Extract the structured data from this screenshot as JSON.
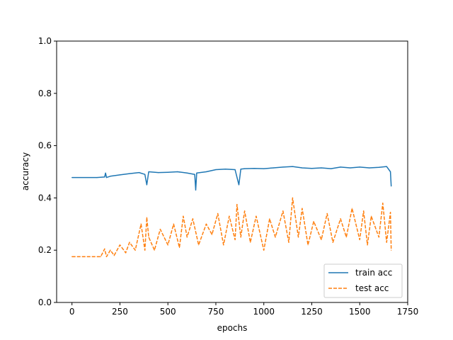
{
  "chart_data": {
    "type": "line",
    "xlabel": "epochs",
    "ylabel": "accuracy",
    "xlim": [
      -80,
      1750
    ],
    "ylim": [
      0,
      1.0
    ],
    "xticks": [
      0,
      250,
      500,
      750,
      1000,
      1250,
      1500,
      1750
    ],
    "yticks": [
      0.0,
      0.2,
      0.4,
      0.6,
      0.8,
      1.0
    ],
    "xtick_labels": [
      "0",
      "250",
      "500",
      "750",
      "1000",
      "1250",
      "1500",
      "1750"
    ],
    "ytick_labels": [
      "0.0",
      "0.2",
      "0.4",
      "0.6",
      "0.8",
      "1.0"
    ],
    "grid": false,
    "legend_position": "lower-right",
    "series": [
      {
        "name": "train acc",
        "style": "solid",
        "color": "#1f77b4",
        "x": [
          0,
          130,
          170,
          175,
          180,
          200,
          250,
          300,
          350,
          380,
          390,
          400,
          450,
          500,
          550,
          600,
          640,
          645,
          650,
          700,
          750,
          800,
          850,
          870,
          880,
          900,
          950,
          1000,
          1050,
          1100,
          1150,
          1200,
          1250,
          1300,
          1350,
          1400,
          1450,
          1500,
          1550,
          1600,
          1640,
          1660,
          1664
        ],
        "values": [
          0.478,
          0.478,
          0.48,
          0.495,
          0.478,
          0.483,
          0.488,
          0.493,
          0.497,
          0.49,
          0.45,
          0.5,
          0.497,
          0.498,
          0.5,
          0.495,
          0.49,
          0.43,
          0.495,
          0.5,
          0.508,
          0.51,
          0.508,
          0.45,
          0.51,
          0.512,
          0.513,
          0.512,
          0.515,
          0.518,
          0.52,
          0.515,
          0.513,
          0.515,
          0.512,
          0.518,
          0.515,
          0.518,
          0.515,
          0.517,
          0.52,
          0.5,
          0.445
        ]
      },
      {
        "name": "test acc",
        "style": "dashed",
        "color": "#ff7f0e",
        "x": [
          0,
          150,
          170,
          180,
          200,
          220,
          250,
          280,
          300,
          330,
          360,
          380,
          390,
          400,
          430,
          460,
          500,
          530,
          560,
          580,
          600,
          630,
          660,
          700,
          730,
          760,
          790,
          820,
          850,
          860,
          880,
          900,
          930,
          960,
          1000,
          1030,
          1060,
          1100,
          1130,
          1150,
          1180,
          1200,
          1230,
          1260,
          1300,
          1330,
          1360,
          1400,
          1430,
          1460,
          1500,
          1520,
          1540,
          1560,
          1600,
          1620,
          1640,
          1660,
          1664
        ],
        "values": [
          0.175,
          0.175,
          0.205,
          0.175,
          0.2,
          0.18,
          0.22,
          0.19,
          0.23,
          0.2,
          0.3,
          0.2,
          0.325,
          0.25,
          0.2,
          0.28,
          0.22,
          0.3,
          0.21,
          0.33,
          0.25,
          0.32,
          0.22,
          0.3,
          0.26,
          0.34,
          0.22,
          0.33,
          0.24,
          0.375,
          0.25,
          0.35,
          0.23,
          0.33,
          0.2,
          0.32,
          0.25,
          0.35,
          0.23,
          0.4,
          0.25,
          0.36,
          0.22,
          0.31,
          0.24,
          0.34,
          0.23,
          0.32,
          0.25,
          0.36,
          0.24,
          0.35,
          0.22,
          0.33,
          0.25,
          0.38,
          0.23,
          0.345,
          0.2
        ]
      }
    ]
  }
}
